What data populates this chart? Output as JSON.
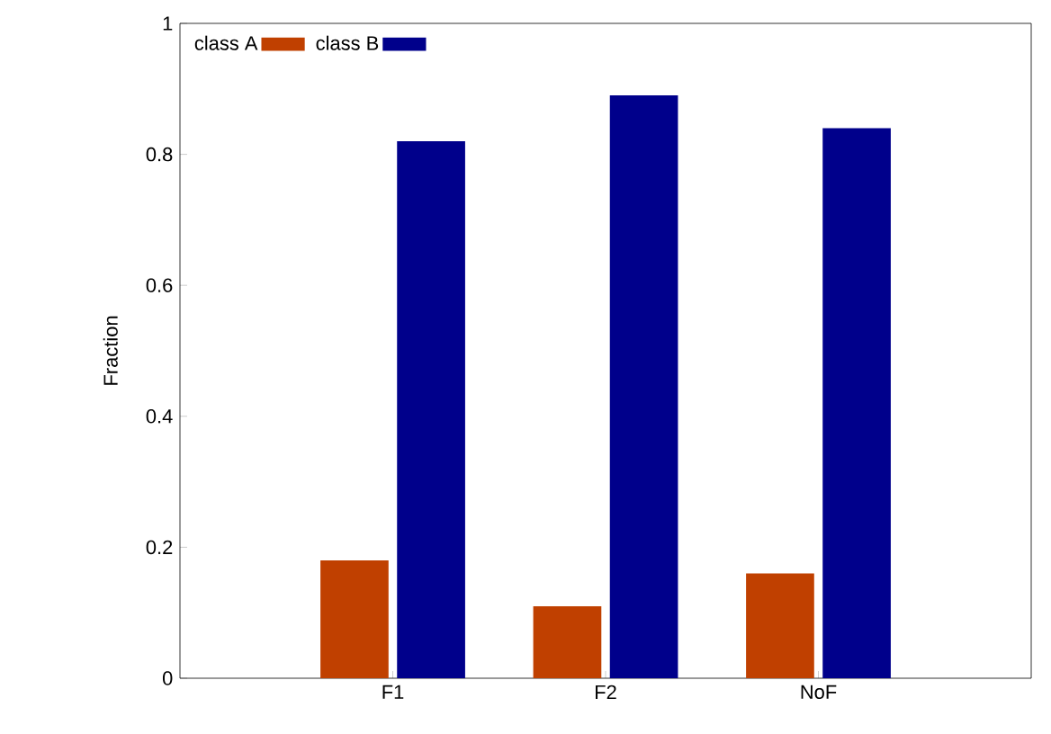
{
  "chart_data": {
    "type": "bar",
    "ylabel": "Fraction",
    "categories": [
      "F1",
      "F2",
      "NoF"
    ],
    "series": [
      {
        "name": "class A",
        "color": "#c04000",
        "values": [
          0.18,
          0.11,
          0.16
        ]
      },
      {
        "name": "class B",
        "color": "#00008b",
        "values": [
          0.82,
          0.89,
          0.84
        ]
      }
    ],
    "ylim": [
      0,
      1
    ],
    "yticks": [
      0,
      0.2,
      0.4,
      0.6,
      0.8,
      1
    ],
    "legend": "top left",
    "grid": false
  }
}
